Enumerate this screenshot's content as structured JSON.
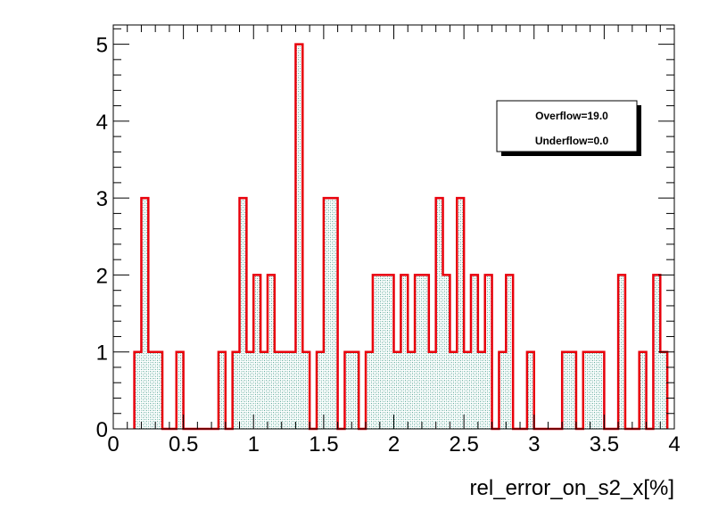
{
  "chart_data": {
    "type": "bar",
    "style": "histogram",
    "xlabel": "rel_error_on_s2_x[%]",
    "ylabel": "",
    "xlim": [
      0,
      4
    ],
    "ylim": [
      0,
      5.25
    ],
    "bin_width": 0.05,
    "x_ticks": [
      "0",
      "0.5",
      "1",
      "1.5",
      "2",
      "2.5",
      "3",
      "3.5",
      "4"
    ],
    "y_ticks": [
      "0",
      "1",
      "2",
      "3",
      "4",
      "5"
    ],
    "bins": [
      {
        "x": 0.15,
        "y": 1
      },
      {
        "x": 0.2,
        "y": 3
      },
      {
        "x": 0.25,
        "y": 1
      },
      {
        "x": 0.3,
        "y": 1
      },
      {
        "x": 0.45,
        "y": 1
      },
      {
        "x": 0.75,
        "y": 1
      },
      {
        "x": 0.85,
        "y": 1
      },
      {
        "x": 0.9,
        "y": 3
      },
      {
        "x": 0.95,
        "y": 1
      },
      {
        "x": 1.0,
        "y": 2
      },
      {
        "x": 1.05,
        "y": 1
      },
      {
        "x": 1.1,
        "y": 2
      },
      {
        "x": 1.15,
        "y": 1
      },
      {
        "x": 1.2,
        "y": 1
      },
      {
        "x": 1.25,
        "y": 1
      },
      {
        "x": 1.3,
        "y": 5
      },
      {
        "x": 1.35,
        "y": 1
      },
      {
        "x": 1.45,
        "y": 1
      },
      {
        "x": 1.5,
        "y": 3
      },
      {
        "x": 1.55,
        "y": 3
      },
      {
        "x": 1.65,
        "y": 1
      },
      {
        "x": 1.7,
        "y": 1
      },
      {
        "x": 1.8,
        "y": 1
      },
      {
        "x": 1.85,
        "y": 2
      },
      {
        "x": 1.9,
        "y": 2
      },
      {
        "x": 1.95,
        "y": 2
      },
      {
        "x": 2.0,
        "y": 1
      },
      {
        "x": 2.05,
        "y": 2
      },
      {
        "x": 2.1,
        "y": 1
      },
      {
        "x": 2.15,
        "y": 2
      },
      {
        "x": 2.2,
        "y": 2
      },
      {
        "x": 2.25,
        "y": 1
      },
      {
        "x": 2.3,
        "y": 3
      },
      {
        "x": 2.35,
        "y": 2
      },
      {
        "x": 2.4,
        "y": 1
      },
      {
        "x": 2.45,
        "y": 3
      },
      {
        "x": 2.5,
        "y": 1
      },
      {
        "x": 2.55,
        "y": 2
      },
      {
        "x": 2.6,
        "y": 1
      },
      {
        "x": 2.65,
        "y": 2
      },
      {
        "x": 2.75,
        "y": 1
      },
      {
        "x": 2.8,
        "y": 2
      },
      {
        "x": 2.95,
        "y": 1
      },
      {
        "x": 3.2,
        "y": 1
      },
      {
        "x": 3.25,
        "y": 1
      },
      {
        "x": 3.35,
        "y": 1
      },
      {
        "x": 3.4,
        "y": 1
      },
      {
        "x": 3.45,
        "y": 1
      },
      {
        "x": 3.6,
        "y": 2
      },
      {
        "x": 3.75,
        "y": 1
      },
      {
        "x": 3.85,
        "y": 2
      },
      {
        "x": 3.9,
        "y": 1
      }
    ],
    "fill_color": "#5fa89a",
    "line_color": "#e8000b",
    "grid": false,
    "legend": "top-right"
  },
  "stats": {
    "overflow": "Overflow=19.0",
    "underflow": "Underflow=0.0"
  }
}
